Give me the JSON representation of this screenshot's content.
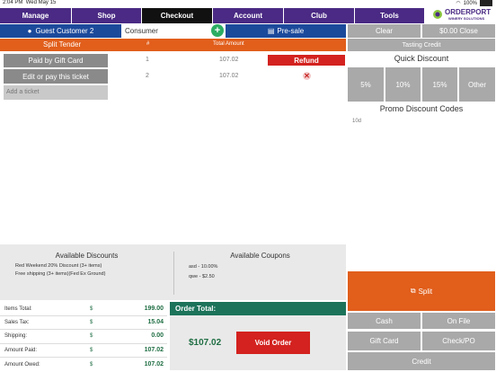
{
  "status": {
    "time": "2:04 PM",
    "date": "Wed May 15",
    "battery": "100%"
  },
  "nav": {
    "items": [
      "Manage",
      "Shop",
      "Checkout",
      "Account",
      "Club",
      "Tools"
    ],
    "active": "Checkout"
  },
  "logo": {
    "main": "ORDERPORT",
    "sub": "WINERY SOLUTIONS"
  },
  "customer": {
    "button": "Guest Customer 2",
    "type": "Consumer",
    "presale": "Pre-sale"
  },
  "actions": {
    "clear": "Clear",
    "close": "$0.00 Close"
  },
  "split": {
    "header": "Split Tender",
    "col_num": "#",
    "col_amount": "Total Amount"
  },
  "tenders": [
    {
      "label": "Paid by Gift Card",
      "num": "1",
      "amount": "107.02",
      "action": "Refund"
    },
    {
      "label": "Edit or pay this ticket",
      "num": "2",
      "amount": "107.02",
      "action": "✕"
    }
  ],
  "add_ticket": "Add a ticket",
  "right": {
    "tasting": "Tasting Credit",
    "quick_discount": "Quick Discount",
    "discounts": [
      "5%",
      "10%",
      "15%",
      "Other"
    ],
    "promo_title": "Promo Discount Codes",
    "promo_value": "10d",
    "split_button": "Split",
    "payments": [
      "Cash",
      "On File",
      "Gift Card",
      "Check/PO",
      "Credit"
    ]
  },
  "available_discounts": {
    "title": "Available Discounts",
    "items": [
      "Red Weekend 20% Discount (3+ items)",
      "Free shipping (3+ items)(Fed Ex Ground)"
    ]
  },
  "available_coupons": {
    "title": "Available Coupons",
    "items": [
      "asd - 10.00%",
      "qwe - $2.50"
    ]
  },
  "totals": [
    {
      "label": "Items Total:",
      "cur": "$",
      "value": "199.00"
    },
    {
      "label": "Sales Tax:",
      "cur": "$",
      "value": "15.04"
    },
    {
      "label": "Shipping:",
      "cur": "$",
      "value": "0.00"
    },
    {
      "label": "Amount Paid:",
      "cur": "$",
      "value": "107.02"
    },
    {
      "label": "Amount Owed:",
      "cur": "$",
      "value": "107.02"
    }
  ],
  "order": {
    "title": "Order Total:",
    "amount": "$107.02",
    "void": "Void Order"
  },
  "colors": {
    "purple": "#4a2a84",
    "blue": "#1c4a9b",
    "orange": "#e15e1b",
    "teal": "#1c735a",
    "red": "#d3221f"
  }
}
